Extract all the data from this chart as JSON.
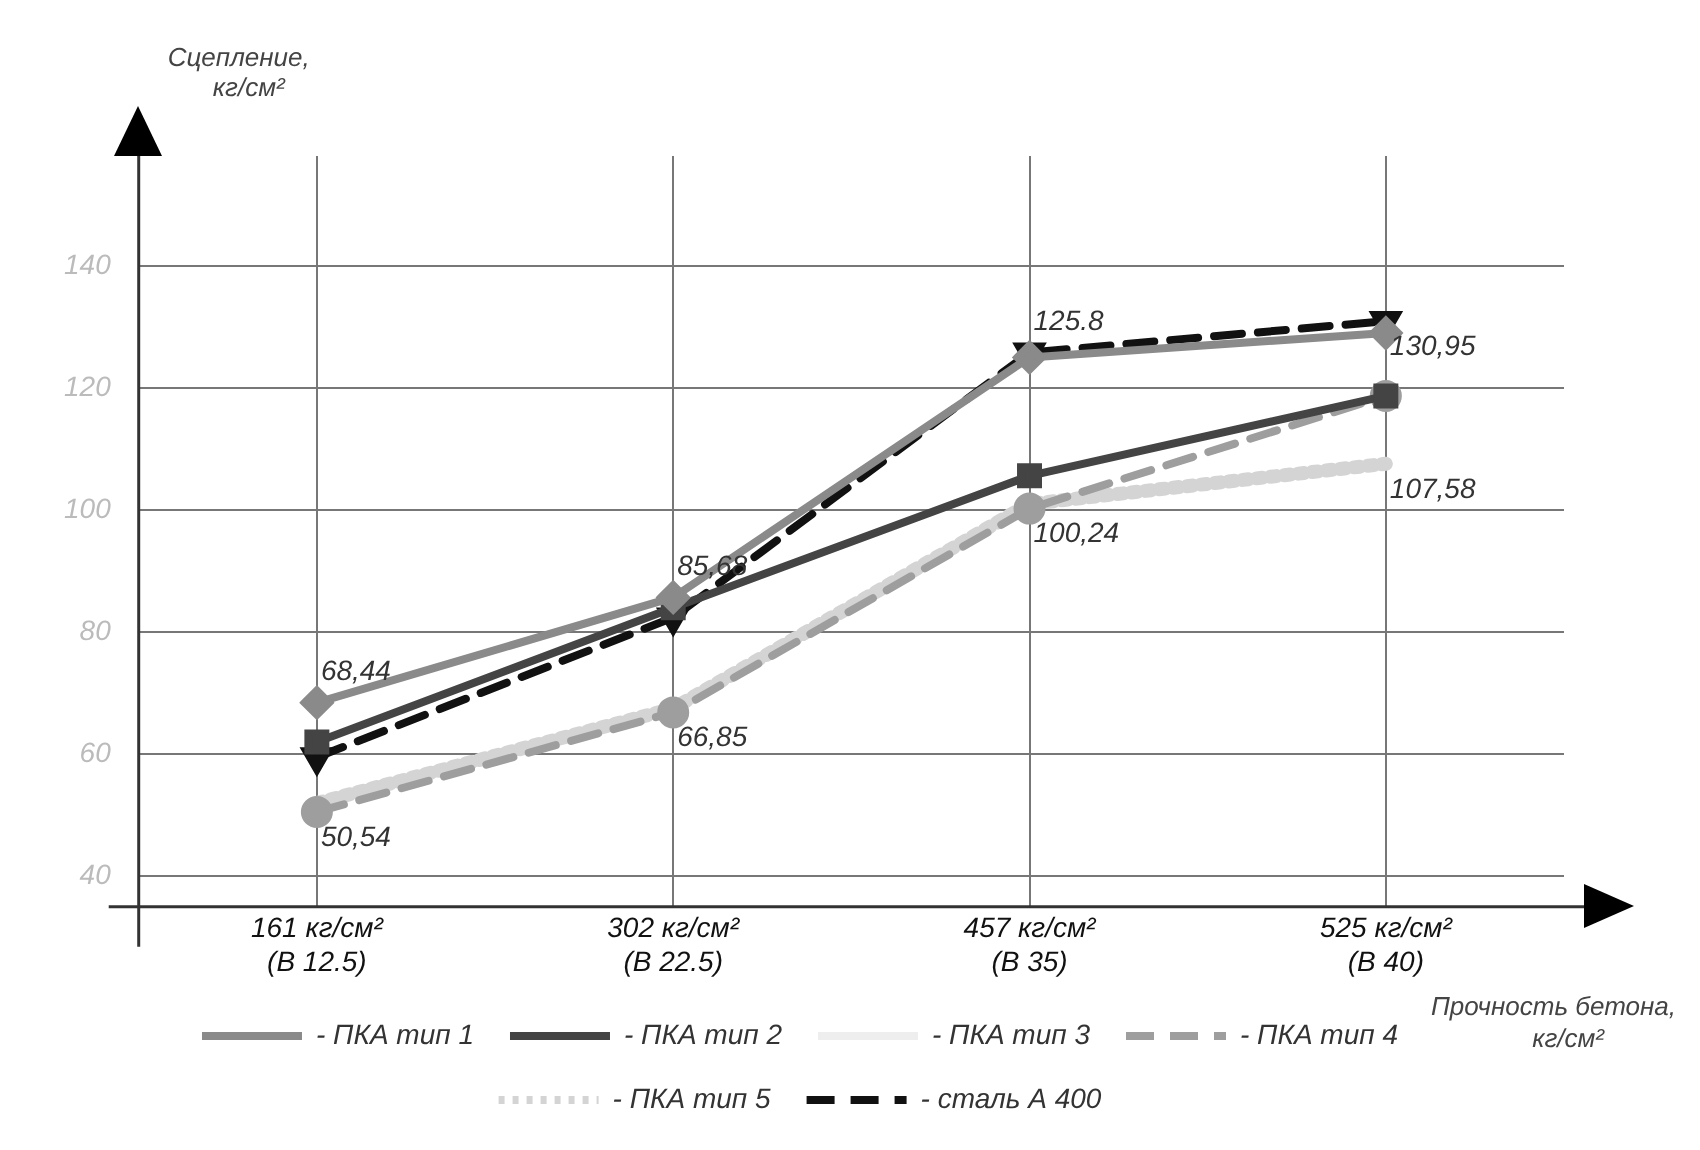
{
  "chart_data": {
    "type": "line",
    "xlabel": "Прочность бетона, кг/см²",
    "ylabel": "Сцепление, кг/см²",
    "categories": [
      "161 кг/см²\n(В 12.5)",
      "302 кг/см²\n(В 22.5)",
      "457 кг/см²\n(В 35)",
      "525 кг/см²\n(В 40)"
    ],
    "ylim": [
      35,
      158
    ],
    "yticks": [
      40,
      60,
      80,
      100,
      120,
      140
    ],
    "grid": true,
    "legend": "bottom",
    "series": [
      {
        "name": "- ПКА тип 1",
        "color": "#8a8a8a",
        "values": [
          68.44,
          85.68,
          125,
          129
        ],
        "value_labels": [
          "68,44",
          "85,68",
          null,
          null
        ],
        "marker": "diamond",
        "line_style": "solid"
      },
      {
        "name": "- ПКА тип 2",
        "color": "#444444",
        "values": [
          62,
          84,
          105.6,
          118.7
        ],
        "marker": "square",
        "line_style": "solid"
      },
      {
        "name": "- ПКА тип 3",
        "color": "#eeeeee",
        "values": [
          null,
          null,
          null,
          null
        ],
        "marker": "none",
        "line_style": "solid"
      },
      {
        "name": "- ПКА тип 4",
        "color": "#9e9e9e",
        "values": [
          50.54,
          66.85,
          100.24,
          118.7
        ],
        "value_labels": [
          "50,54",
          "66,85",
          "100,24",
          null
        ],
        "marker": "circle",
        "line_style": "dashed"
      },
      {
        "name": "- ПКА тип 5",
        "color": "#d4d4d4",
        "values": [
          52,
          67.5,
          101,
          107.58
        ],
        "value_labels": [
          null,
          null,
          null,
          "107,58"
        ],
        "marker": "none",
        "line_style": "dotted"
      },
      {
        "name": "- сталь А 400",
        "color": "#111111",
        "values": [
          59.5,
          82.4,
          125.8,
          130.95
        ],
        "value_labels": [
          null,
          null,
          "125.8",
          "130,95"
        ],
        "marker": "triangle",
        "line_style": "dashed"
      }
    ]
  }
}
